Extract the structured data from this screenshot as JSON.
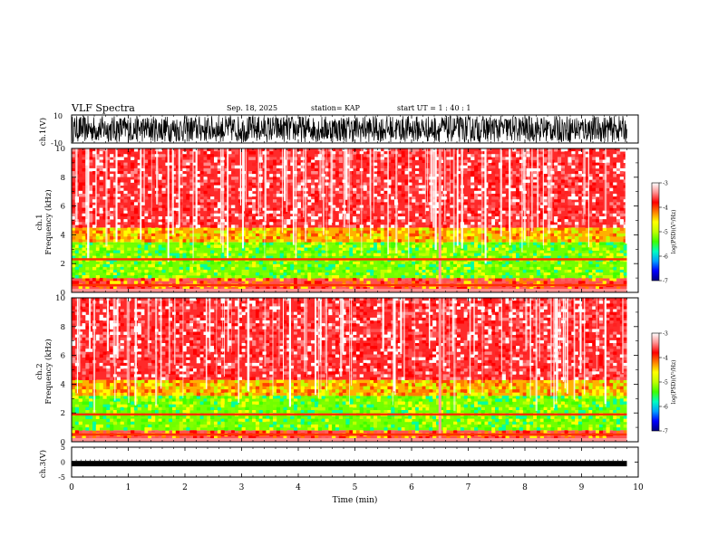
{
  "header": {
    "title": "VLF Spectra",
    "date": "Sep. 18, 2025",
    "station": "station= KAP",
    "start": "start  UT  =   1 : 40 : 1"
  },
  "chart_data": [
    {
      "type": "line",
      "id": "ch1-waveform",
      "ylabel": "ch.1(V)",
      "ylim": [
        -10,
        10
      ],
      "yticks": [
        "10",
        "-10"
      ],
      "xlim": [
        0,
        10
      ],
      "description_series": "noisy broadband waveform spanning roughly -10 to 10 V"
    },
    {
      "type": "heatmap",
      "id": "ch1-spectrogram",
      "ylabel": "ch.1\nFrequency  (kHz)",
      "ylim": [
        0,
        10
      ],
      "yticks": [
        "0",
        "2",
        "4",
        "6",
        "8",
        "10"
      ],
      "xlim": [
        0,
        10
      ],
      "data_xmax": 9.8,
      "bands": [
        {
          "from_khz": 0,
          "to_khz": 1.0,
          "level": "low-mixed"
        },
        {
          "from_khz": 1.0,
          "to_khz": 3.5,
          "level": "green"
        },
        {
          "from_khz": 3.5,
          "to_khz": 4.5,
          "level": "yellow"
        },
        {
          "from_khz": 4.5,
          "to_khz": 10,
          "level": "red"
        }
      ],
      "line_khz": [
        2.3,
        0.5
      ]
    },
    {
      "type": "heatmap",
      "id": "ch2-spectrogram",
      "ylabel": "ch.2\nFrequency  (kHz)",
      "ylim": [
        0,
        10
      ],
      "yticks": [
        "0",
        "2",
        "4",
        "6",
        "8",
        "10"
      ],
      "xlim": [
        0,
        10
      ],
      "data_xmax": 9.8,
      "bands": [
        {
          "from_khz": 0,
          "to_khz": 0.8,
          "level": "low-mixed"
        },
        {
          "from_khz": 0.8,
          "to_khz": 3.2,
          "level": "green"
        },
        {
          "from_khz": 3.2,
          "to_khz": 4.3,
          "level": "yellow"
        },
        {
          "from_khz": 4.3,
          "to_khz": 10,
          "level": "red"
        }
      ],
      "line_khz": [
        1.9,
        0.5
      ]
    },
    {
      "type": "line",
      "id": "ch3-waveform",
      "ylabel": "ch.3(V)",
      "ylim": [
        -5,
        5
      ],
      "yticks": [
        "5",
        "0",
        "-5"
      ],
      "xlim": [
        0,
        10
      ],
      "level_v": -0.5,
      "xlabel": "Time  (min)",
      "xticks": [
        "0",
        "1",
        "2",
        "3",
        "4",
        "5",
        "6",
        "7",
        "8",
        "9",
        "10"
      ]
    }
  ],
  "colorbar": {
    "label": "log(PSD)(V²/Hz)",
    "range": [
      -7,
      -3
    ],
    "ticks": [
      "-3",
      "-4",
      "-5",
      "-6",
      "-7"
    ],
    "colors": [
      "#00007f",
      "#0000ff",
      "#00a0ff",
      "#00ffc0",
      "#40ff00",
      "#c0ff00",
      "#ffff00",
      "#ff8000",
      "#ff0000",
      "#ff9090",
      "#ffffff"
    ]
  }
}
